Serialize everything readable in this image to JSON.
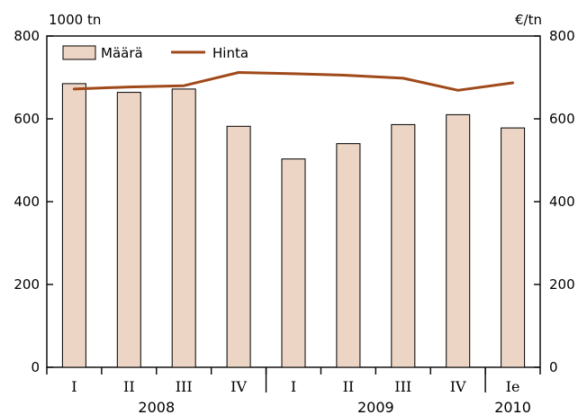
{
  "chart_data": {
    "type": "bar",
    "left_axis_unit": "1000 tn",
    "right_axis_unit": "€/tn",
    "ylim": [
      0,
      800
    ],
    "yticks": [
      0,
      200,
      400,
      600,
      800
    ],
    "y2lim": [
      0,
      800
    ],
    "y2ticks": [
      0,
      200,
      400,
      600,
      800
    ],
    "categories": [
      "I",
      "II",
      "III",
      "IV",
      "I",
      "II",
      "III",
      "IV",
      "Ie"
    ],
    "year_groups": [
      {
        "label": "2008",
        "start": 0,
        "end": 3
      },
      {
        "label": "2009",
        "start": 4,
        "end": 7
      },
      {
        "label": "2010",
        "start": 8,
        "end": 8
      }
    ],
    "series": [
      {
        "name": "Määrä",
        "type": "bar",
        "axis": "left",
        "color": "#ecd5c5",
        "values": [
          685,
          664,
          672,
          582,
          503,
          540,
          586,
          610,
          578
        ]
      },
      {
        "name": "Hinta",
        "type": "line",
        "axis": "right",
        "color": "#a0491a",
        "values": [
          672,
          677,
          680,
          712,
          709,
          705,
          698,
          669,
          687
        ]
      }
    ],
    "legend_position": "top-left",
    "grid": false
  }
}
